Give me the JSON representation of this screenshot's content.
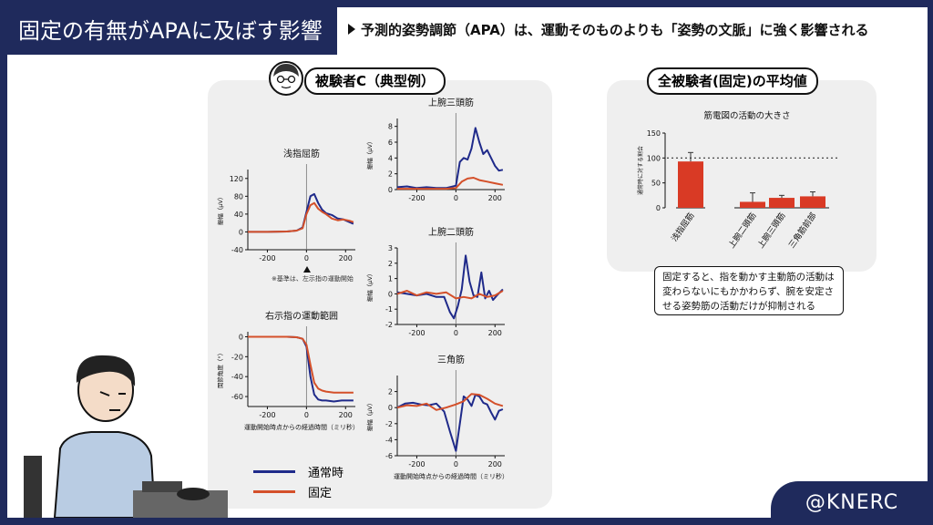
{
  "header": {
    "title": "固定の有無がAPAに及ぼす影響",
    "subtitle": "予測的姿勢調節（APA）は、運動そのものよりも「姿勢の文脈」に強く影響される"
  },
  "left_panel": {
    "label": "被験者C（典型例）",
    "reference_note": "※基準は、左示指の運動開始",
    "legend": [
      {
        "label": "通常時",
        "color": "#1f2a8a"
      },
      {
        "label": "固定",
        "color": "#d4502a"
      }
    ]
  },
  "right_panel": {
    "label": "全被験者(固定)の平均値",
    "callout": "固定すると、指を動かす主動筋の活動は変わらないにもかかわらず、腕を安定させる姿勢筋の活動だけが抑制される"
  },
  "branding": {
    "handle": "@KNERC"
  },
  "colors": {
    "navy": "#1f2a5c",
    "normal": "#1f2a8a",
    "fixed": "#d4502a"
  },
  "chart_data": [
    {
      "id": "fds",
      "type": "line",
      "title": "浅指屈筋",
      "ylabel": "振幅（μV）",
      "xlabel": "",
      "xlim": [
        -300,
        250
      ],
      "ylim": [
        -40,
        140
      ],
      "xticks": [
        -200,
        0,
        200
      ],
      "yticks": [
        -40,
        0,
        40,
        80,
        120
      ],
      "series": [
        {
          "name": "通常時",
          "x": [
            -300,
            -200,
            -100,
            -50,
            -20,
            0,
            20,
            40,
            60,
            80,
            100,
            130,
            160,
            190,
            220,
            240
          ],
          "y": [
            0,
            0,
            1,
            3,
            10,
            45,
            80,
            85,
            65,
            50,
            42,
            38,
            30,
            28,
            22,
            18
          ]
        },
        {
          "name": "固定",
          "x": [
            -300,
            -200,
            -100,
            -50,
            -20,
            0,
            20,
            40,
            60,
            80,
            100,
            130,
            160,
            190,
            220,
            240
          ],
          "y": [
            0,
            0,
            1,
            3,
            8,
            40,
            60,
            65,
            52,
            45,
            40,
            30,
            26,
            28,
            25,
            22
          ]
        }
      ]
    },
    {
      "id": "triceps",
      "type": "line",
      "title": "上腕三頭筋",
      "ylabel": "振幅（μV）",
      "xlabel": "",
      "xlim": [
        -300,
        250
      ],
      "ylim": [
        0,
        9
      ],
      "xticks": [
        -200,
        0,
        200
      ],
      "yticks": [
        0,
        2,
        4,
        6,
        8
      ],
      "series": [
        {
          "name": "通常時",
          "x": [
            -300,
            -250,
            -200,
            -150,
            -100,
            -50,
            0,
            20,
            40,
            60,
            80,
            100,
            120,
            140,
            160,
            180,
            200,
            220,
            240
          ],
          "y": [
            0.3,
            0.4,
            0.2,
            0.3,
            0.2,
            0.2,
            0.5,
            3.5,
            4.0,
            3.8,
            5.2,
            7.8,
            6.0,
            4.5,
            5.0,
            4.0,
            3.0,
            2.4,
            2.5
          ]
        },
        {
          "name": "固定",
          "x": [
            -300,
            -200,
            -100,
            -50,
            0,
            30,
            60,
            90,
            120,
            160,
            200,
            240
          ],
          "y": [
            0.1,
            0.1,
            0.1,
            0.1,
            0.2,
            1.0,
            1.4,
            1.5,
            1.2,
            1.0,
            0.8,
            0.6
          ]
        }
      ]
    },
    {
      "id": "biceps",
      "type": "line",
      "title": "上腕二頭筋",
      "ylabel": "振幅（μV）",
      "xlabel": "",
      "xlim": [
        -300,
        250
      ],
      "ylim": [
        -2,
        3
      ],
      "xticks": [
        -200,
        0,
        200
      ],
      "yticks": [
        -2,
        -1,
        0,
        1,
        2,
        3
      ],
      "series": [
        {
          "name": "通常時",
          "x": [
            -300,
            -250,
            -200,
            -150,
            -100,
            -60,
            -30,
            -10,
            10,
            30,
            50,
            70,
            90,
            110,
            130,
            150,
            170,
            190,
            210,
            240
          ],
          "y": [
            0.1,
            0.0,
            -0.1,
            0.0,
            -0.2,
            -0.2,
            -1.2,
            -1.6,
            -0.8,
            0.3,
            2.5,
            0.8,
            -0.1,
            -0.2,
            1.4,
            -0.3,
            0.2,
            -0.4,
            -0.1,
            0.3
          ]
        },
        {
          "name": "固定",
          "x": [
            -300,
            -250,
            -200,
            -150,
            -100,
            -50,
            0,
            40,
            80,
            120,
            160,
            200,
            240
          ],
          "y": [
            0.0,
            0.2,
            -0.1,
            0.1,
            0.0,
            0.1,
            -0.3,
            -0.2,
            -0.3,
            0.0,
            -0.2,
            -0.1,
            0.2
          ]
        }
      ]
    },
    {
      "id": "deltoid",
      "type": "line",
      "title": "三角筋",
      "ylabel": "振幅（μV）",
      "xlabel": "運動開始時点からの経過時間（ミリ秒）",
      "xlim": [
        -300,
        250
      ],
      "ylim": [
        -6,
        4
      ],
      "xticks": [
        -200,
        0,
        200
      ],
      "yticks": [
        -6,
        -4,
        -2,
        0,
        2
      ],
      "series": [
        {
          "name": "通常時",
          "x": [
            -300,
            -260,
            -220,
            -180,
            -140,
            -100,
            -60,
            -30,
            0,
            20,
            40,
            60,
            80,
            100,
            120,
            140,
            160,
            180,
            200,
            220,
            240
          ],
          "y": [
            0.0,
            0.5,
            0.6,
            0.4,
            0.3,
            0.5,
            -0.5,
            -3.0,
            -5.4,
            -2.0,
            1.4,
            1.0,
            0.2,
            1.6,
            1.4,
            0.6,
            0.4,
            -0.6,
            -1.5,
            -0.4,
            -0.2
          ]
        },
        {
          "name": "固定",
          "x": [
            -300,
            -250,
            -200,
            -150,
            -100,
            -50,
            0,
            40,
            80,
            120,
            160,
            200,
            240
          ],
          "y": [
            0.0,
            0.3,
            0.2,
            0.5,
            -0.3,
            0.0,
            0.4,
            0.8,
            1.7,
            1.6,
            1.1,
            0.5,
            0.2
          ]
        }
      ]
    },
    {
      "id": "finger_range",
      "type": "line",
      "title": "右示指の運動範囲",
      "ylabel": "関節角度（°）",
      "xlabel": "運動開始時点からの経過時間（ミリ秒）",
      "xlim": [
        -300,
        250
      ],
      "ylim": [
        -70,
        5
      ],
      "xticks": [
        -200,
        0,
        200
      ],
      "yticks": [
        -60,
        -40,
        -20,
        0
      ],
      "series": [
        {
          "name": "通常時",
          "x": [
            -300,
            -200,
            -100,
            -50,
            -20,
            0,
            20,
            40,
            60,
            80,
            100,
            140,
            180,
            240
          ],
          "y": [
            0,
            0,
            0,
            -0.5,
            -2,
            -10,
            -40,
            -58,
            -63,
            -64,
            -64,
            -65,
            -64,
            -64
          ]
        },
        {
          "name": "固定",
          "x": [
            -300,
            -200,
            -100,
            -50,
            -20,
            0,
            20,
            40,
            60,
            80,
            100,
            140,
            180,
            240
          ],
          "y": [
            0,
            0,
            0,
            -0.5,
            -2,
            -8,
            -28,
            -46,
            -52,
            -54,
            -55,
            -56,
            -56,
            -56
          ]
        }
      ]
    },
    {
      "id": "avg_bar",
      "type": "bar",
      "title": "筋電図の活動の大きさ",
      "ylabel": "通常時に対する割合",
      "xlabel": "",
      "ylim": [
        0,
        150
      ],
      "yticks": [
        0,
        50,
        100,
        150
      ],
      "reference_line": 100,
      "categories": [
        "浅指屈筋",
        "上腕二頭筋",
        "上腕三頭筋",
        "三角筋前部"
      ],
      "values": [
        93,
        12,
        20,
        23
      ],
      "errors": [
        18,
        18,
        5,
        9
      ]
    }
  ]
}
